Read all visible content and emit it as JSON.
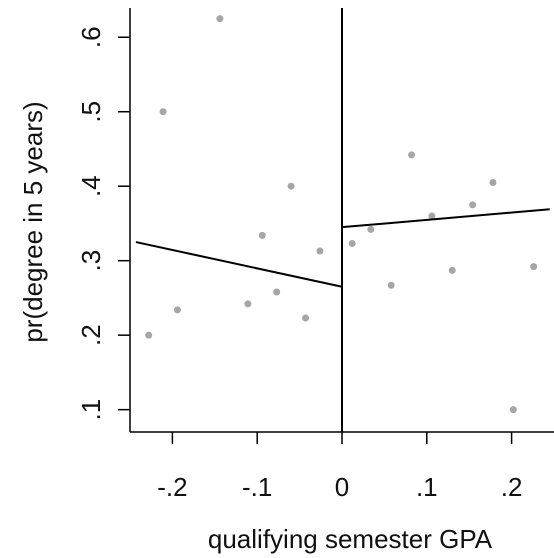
{
  "chart_data": {
    "type": "scatter",
    "xlabel": "qualifying semester GPA",
    "ylabel": "pr(degree in 5 years)",
    "xlim": [
      -0.25,
      0.25
    ],
    "ylim": [
      0.07,
      0.65
    ],
    "x_ticks": [
      {
        "value": -0.2,
        "label": "-.2"
      },
      {
        "value": -0.1,
        "label": "-.1"
      },
      {
        "value": 0,
        "label": "0"
      },
      {
        "value": 0.1,
        "label": ".1"
      },
      {
        "value": 0.2,
        "label": ".2"
      }
    ],
    "y_ticks": [
      {
        "value": 0.1,
        "label": ".1"
      },
      {
        "value": 0.2,
        "label": ".2"
      },
      {
        "value": 0.3,
        "label": ".3"
      },
      {
        "value": 0.4,
        "label": ".4"
      },
      {
        "value": 0.5,
        "label": ".5"
      },
      {
        "value": 0.6,
        "label": ".6"
      }
    ],
    "cutoff": 0,
    "points": [
      {
        "x": -0.228,
        "y": 0.2
      },
      {
        "x": -0.211,
        "y": 0.5
      },
      {
        "x": -0.194,
        "y": 0.234
      },
      {
        "x": -0.144,
        "y": 0.625
      },
      {
        "x": -0.111,
        "y": 0.242
      },
      {
        "x": -0.094,
        "y": 0.334
      },
      {
        "x": -0.077,
        "y": 0.258
      },
      {
        "x": -0.06,
        "y": 0.4
      },
      {
        "x": -0.043,
        "y": 0.223
      },
      {
        "x": -0.026,
        "y": 0.313
      },
      {
        "x": 0.012,
        "y": 0.323
      },
      {
        "x": 0.034,
        "y": 0.342
      },
      {
        "x": 0.058,
        "y": 0.267
      },
      {
        "x": 0.082,
        "y": 0.442
      },
      {
        "x": 0.106,
        "y": 0.36
      },
      {
        "x": 0.13,
        "y": 0.287
      },
      {
        "x": 0.154,
        "y": 0.375
      },
      {
        "x": 0.178,
        "y": 0.405
      },
      {
        "x": 0.202,
        "y": 0.1
      },
      {
        "x": 0.226,
        "y": 0.292
      }
    ],
    "fit_left": {
      "x": [
        -0.243,
        0
      ],
      "y": [
        0.325,
        0.265
      ]
    },
    "fit_right": {
      "x": [
        0,
        0.245
      ],
      "y": [
        0.345,
        0.369
      ]
    },
    "colors": {
      "points": "#a6a6a6",
      "lines": "#000000",
      "axis": "#000000"
    },
    "grid": false
  }
}
